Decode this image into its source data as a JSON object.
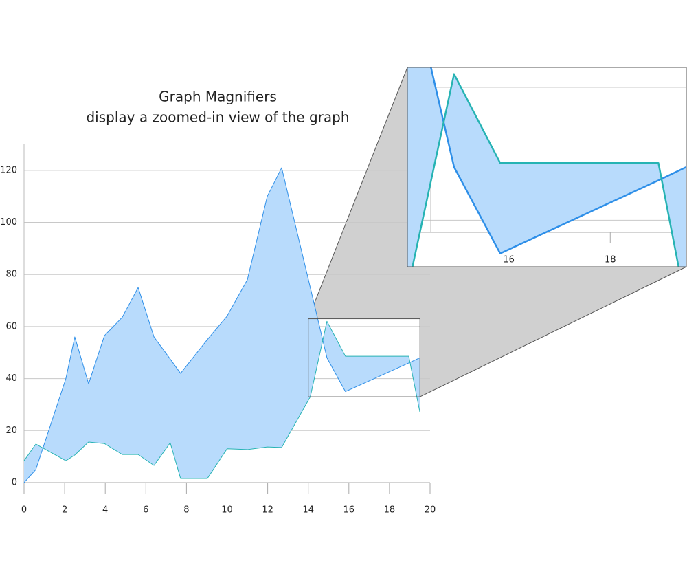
{
  "chart_data": {
    "type": "range-area",
    "title": "Graph Magnifiers",
    "subtitle": "display a zoomed-in view of the graph",
    "x": [
      0,
      0.58,
      2.06,
      2.5,
      3.18,
      3.96,
      4.84,
      5.62,
      6.4,
      7.2,
      7.71,
      9.03,
      10,
      11,
      11.98,
      12.69,
      14.1,
      14.92,
      15.83,
      18.95,
      19.5
    ],
    "series": [
      {
        "color": "#2e8fe8",
        "values": [
          0,
          5,
          40,
          56,
          38,
          56.5,
          63.6,
          75,
          56,
          47.5,
          42,
          55,
          64,
          78,
          110,
          121,
          75,
          48,
          35,
          46,
          48
        ]
      },
      {
        "color": "#26b3b3",
        "values": [
          8.4,
          14.8,
          8.4,
          10.6,
          15.6,
          15,
          10.8,
          10.8,
          6.6,
          15.3,
          1.6,
          1.6,
          13,
          12.7,
          13.7,
          13.5,
          33,
          62,
          48.6,
          48.6,
          27
        ]
      }
    ],
    "fill_color": "#b8dbfc",
    "xlim": [
      0,
      20
    ],
    "xticks": [
      0,
      2,
      4,
      6,
      8,
      10,
      12,
      14,
      16,
      18,
      20
    ],
    "ylim": [
      0,
      130
    ],
    "yticks": [
      0,
      20,
      40,
      60,
      80,
      100,
      120
    ],
    "grid": true,
    "magnifier": {
      "xlim": [
        14,
        19.5
      ],
      "ylim": [
        33,
        63
      ]
    }
  }
}
